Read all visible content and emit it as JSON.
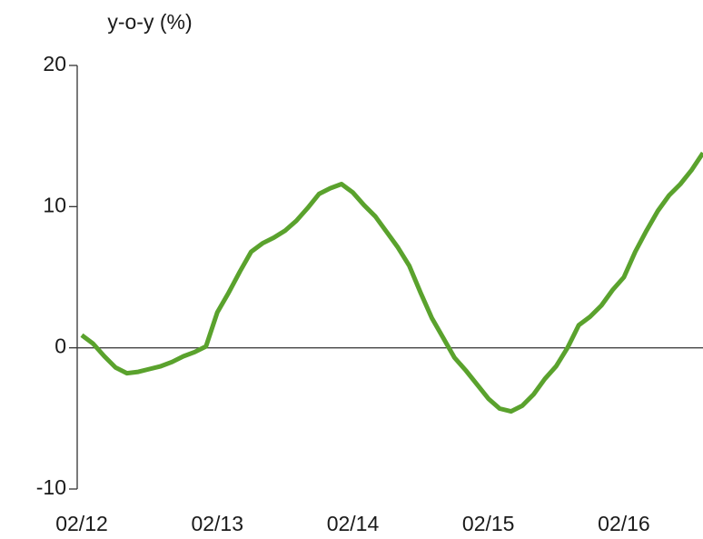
{
  "chart_data": {
    "type": "line",
    "title": "y-o-y (%)",
    "categories": [
      "02/12",
      null,
      null,
      null,
      null,
      null,
      null,
      null,
      null,
      null,
      null,
      null,
      "02/13",
      null,
      null,
      null,
      null,
      null,
      null,
      null,
      null,
      null,
      null,
      null,
      "02/14",
      null,
      null,
      null,
      null,
      null,
      null,
      null,
      null,
      null,
      null,
      null,
      "02/15",
      null,
      null,
      null,
      null,
      null,
      null,
      null,
      null,
      null,
      null,
      null,
      "02/16",
      null,
      null,
      null,
      null,
      null,
      null,
      null
    ],
    "values": [
      0.9,
      0.3,
      -0.6,
      -1.4,
      -1.8,
      -1.7,
      -1.5,
      -1.3,
      -1.0,
      -0.6,
      -0.3,
      0.1,
      2.5,
      3.9,
      5.4,
      6.8,
      7.4,
      7.8,
      8.3,
      9.0,
      9.9,
      10.9,
      11.3,
      11.6,
      11.0,
      10.1,
      9.3,
      8.2,
      7.1,
      5.8,
      3.9,
      2.1,
      0.7,
      -0.7,
      -1.6,
      -2.6,
      -3.6,
      -4.3,
      -4.5,
      -4.1,
      -3.3,
      -2.2,
      -1.3,
      0.0,
      1.6,
      2.2,
      3.0,
      4.1,
      5.0,
      6.8,
      8.3,
      9.7,
      10.8,
      11.6,
      12.6,
      13.8
    ],
    "color": "#5aa22d",
    "ylim": [
      -10,
      20
    ],
    "yticks": [
      -10,
      0,
      10,
      20
    ],
    "zero_line": true
  }
}
